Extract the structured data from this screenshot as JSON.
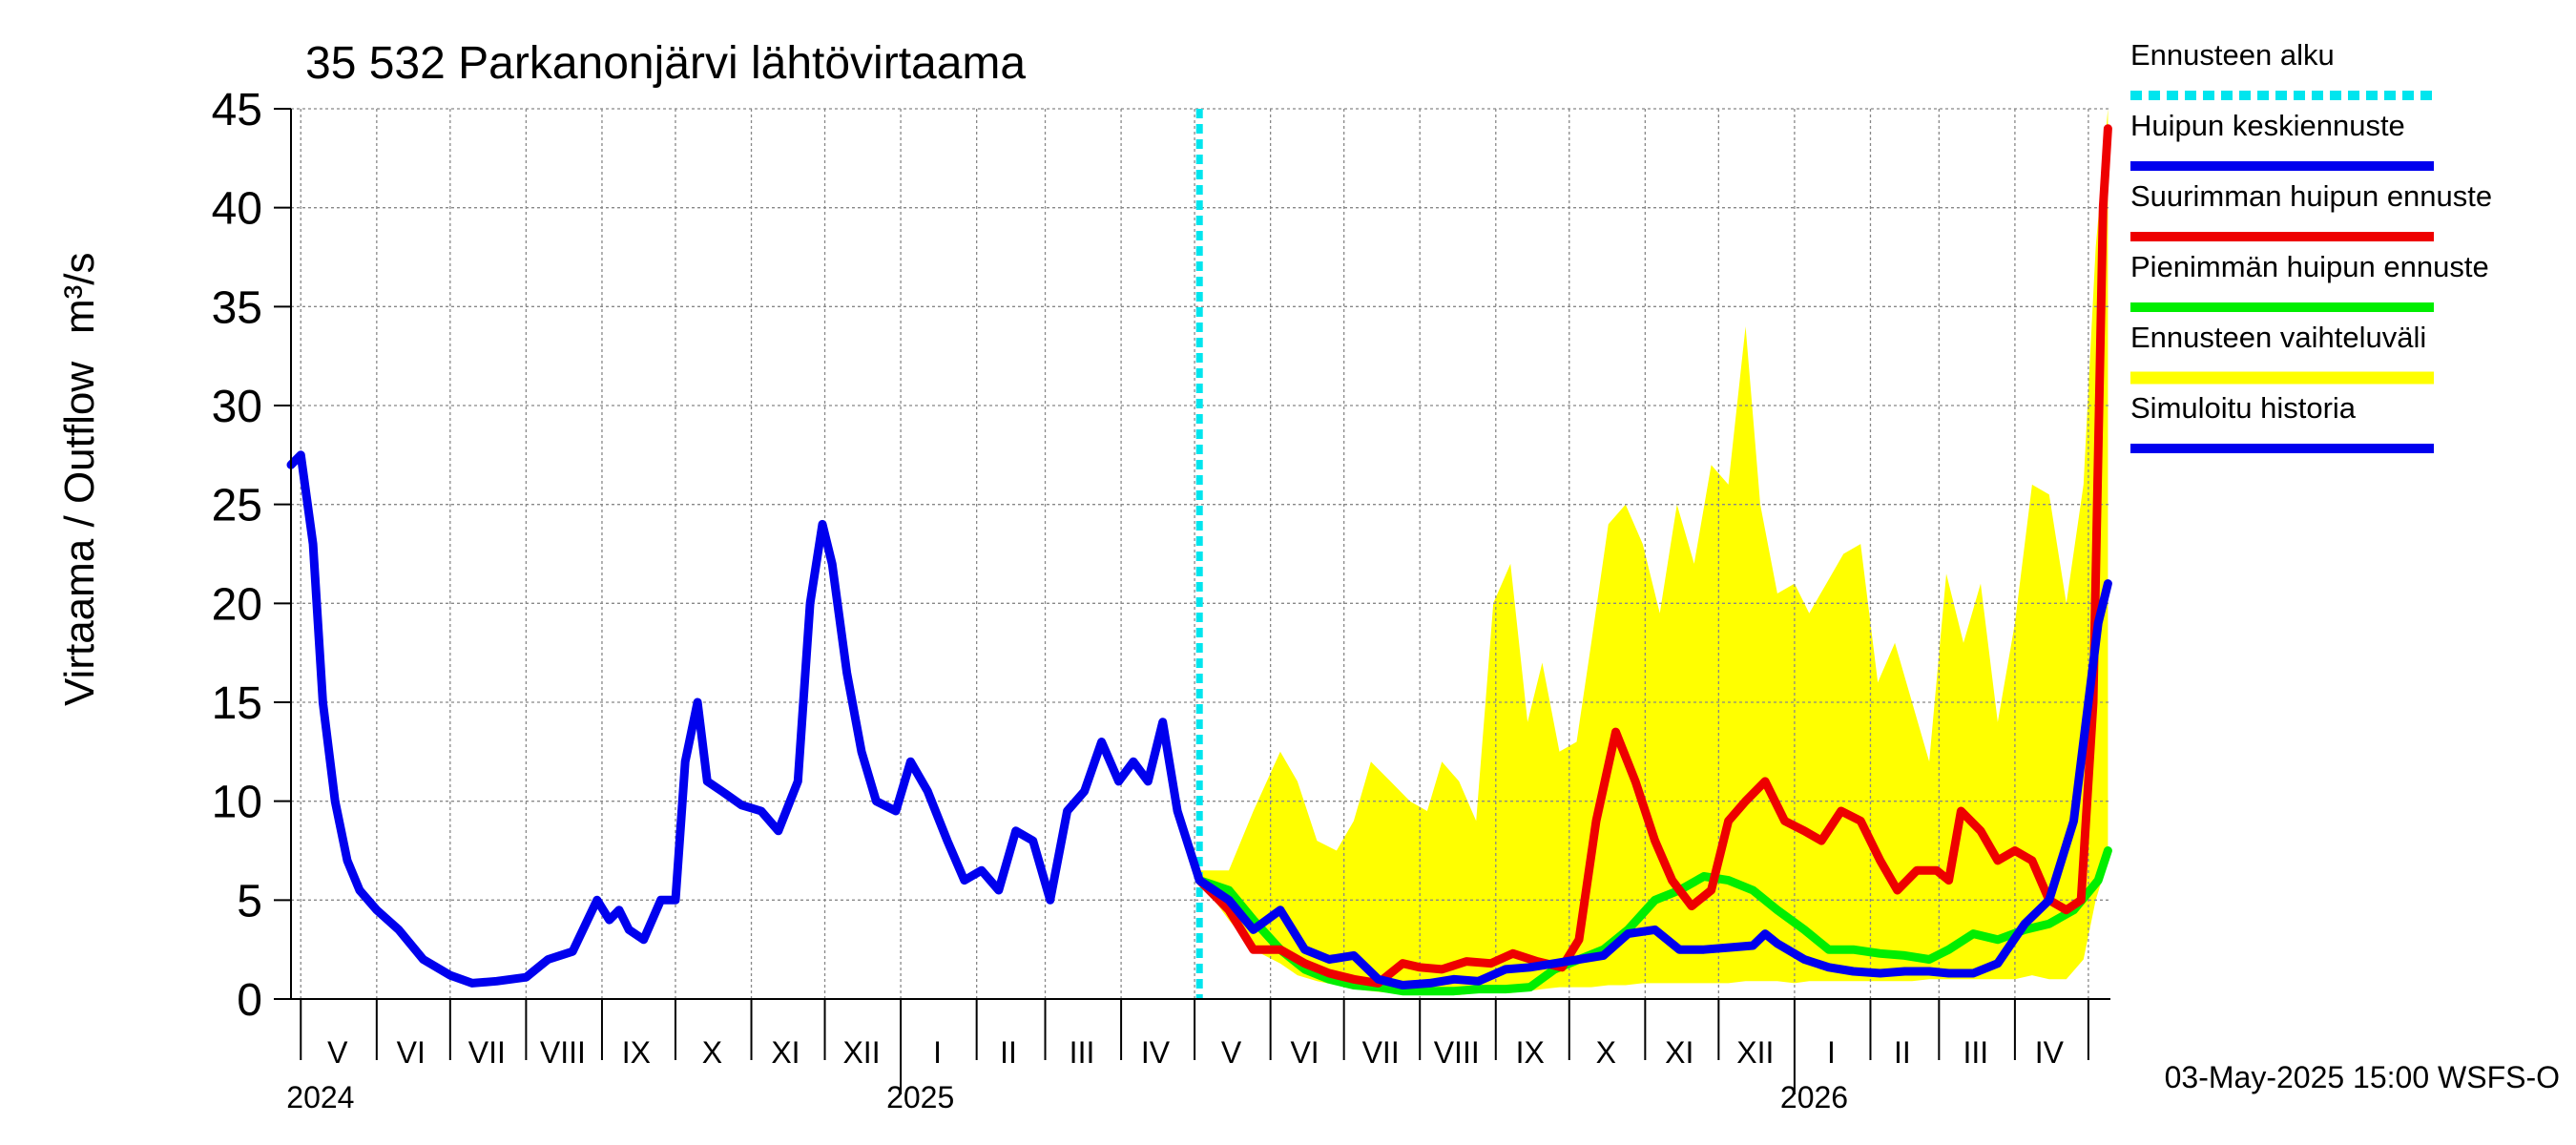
{
  "chart_data": {
    "type": "line",
    "title": "35 532 Parkanonjärvi lähtövirtaama",
    "ylabel": "Virtaama / Outflow",
    "yunit": "m³/s",
    "ylim": [
      0,
      45
    ],
    "yticks": [
      0,
      5,
      10,
      15,
      20,
      25,
      30,
      35,
      40,
      45
    ],
    "xlim": [
      "2024-04-27",
      "2026-05-10"
    ],
    "month_labels": [
      {
        "label": "V",
        "date": "2024-05-16"
      },
      {
        "label": "VI",
        "date": "2024-06-15"
      },
      {
        "label": "VII",
        "date": "2024-07-16"
      },
      {
        "label": "VIII",
        "date": "2024-08-16"
      },
      {
        "label": "IX",
        "date": "2024-09-15"
      },
      {
        "label": "X",
        "date": "2024-10-16"
      },
      {
        "label": "XI",
        "date": "2024-11-15"
      },
      {
        "label": "XII",
        "date": "2024-12-16"
      },
      {
        "label": "I",
        "date": "2025-01-16"
      },
      {
        "label": "II",
        "date": "2025-02-14"
      },
      {
        "label": "III",
        "date": "2025-03-16"
      },
      {
        "label": "IV",
        "date": "2025-04-15"
      },
      {
        "label": "V",
        "date": "2025-05-16"
      },
      {
        "label": "VI",
        "date": "2025-06-15"
      },
      {
        "label": "VII",
        "date": "2025-07-16"
      },
      {
        "label": "VIII",
        "date": "2025-08-16"
      },
      {
        "label": "IX",
        "date": "2025-09-15"
      },
      {
        "label": "X",
        "date": "2025-10-16"
      },
      {
        "label": "XI",
        "date": "2025-11-15"
      },
      {
        "label": "XII",
        "date": "2025-12-16"
      },
      {
        "label": "I",
        "date": "2026-01-16"
      },
      {
        "label": "II",
        "date": "2026-02-14"
      },
      {
        "label": "III",
        "date": "2026-03-16"
      },
      {
        "label": "IV",
        "date": "2026-04-15"
      }
    ],
    "year_labels": [
      {
        "label": "2024",
        "date": "2024-05-01"
      },
      {
        "label": "2025",
        "date": "2025-01-01"
      },
      {
        "label": "2026",
        "date": "2026-01-01"
      }
    ],
    "forecast_start": "2025-05-03",
    "footer": "03-May-2025 15:00 WSFS-O",
    "grid": true,
    "legend_position": "right",
    "legend": [
      {
        "label": "Ennusteen alku",
        "color": "#00e5ee",
        "style": "dashed"
      },
      {
        "label": "Huipun keskiennuste",
        "color": "#0000ee",
        "style": "solid"
      },
      {
        "label": "Suurimman huipun ennuste",
        "color": "#ee0000",
        "style": "solid"
      },
      {
        "label": "Pienimmän huipun ennuste",
        "color": "#00ee00",
        "style": "solid"
      },
      {
        "label": "Ennusteen vaihteluväli",
        "color": "#ffff00",
        "style": "band"
      },
      {
        "label": "Simuloitu historia",
        "color": "#0000ee",
        "style": "solid"
      }
    ],
    "series": [
      {
        "name": "Simuloitu historia",
        "color": "#0000ee",
        "x": [
          "2024-04-27",
          "2024-05-01",
          "2024-05-06",
          "2024-05-10",
          "2024-05-15",
          "2024-05-20",
          "2024-05-25",
          "2024-06-01",
          "2024-06-10",
          "2024-06-20",
          "2024-07-01",
          "2024-07-10",
          "2024-07-20",
          "2024-08-01",
          "2024-08-10",
          "2024-08-20",
          "2024-08-30",
          "2024-09-04",
          "2024-09-08",
          "2024-09-12",
          "2024-09-18",
          "2024-09-25",
          "2024-10-01",
          "2024-10-05",
          "2024-10-10",
          "2024-10-14",
          "2024-10-20",
          "2024-10-28",
          "2024-11-05",
          "2024-11-12",
          "2024-11-20",
          "2024-11-25",
          "2024-11-30",
          "2024-12-04",
          "2024-12-10",
          "2024-12-16",
          "2024-12-22",
          "2024-12-30",
          "2025-01-05",
          "2025-01-12",
          "2025-01-20",
          "2025-01-27",
          "2025-02-03",
          "2025-02-10",
          "2025-02-17",
          "2025-02-24",
          "2025-03-03",
          "2025-03-10",
          "2025-03-17",
          "2025-03-24",
          "2025-03-31",
          "2025-04-06",
          "2025-04-12",
          "2025-04-18",
          "2025-04-24",
          "2025-05-03"
        ],
        "values": [
          27,
          27.5,
          23,
          15,
          10,
          7,
          5.5,
          4.5,
          3.5,
          2,
          1.2,
          0.8,
          0.9,
          1.1,
          2,
          2.4,
          5,
          4,
          4.5,
          3.5,
          3,
          5,
          5,
          12,
          15,
          11,
          10.5,
          9.8,
          9.5,
          8.5,
          11,
          20,
          24,
          22,
          16.5,
          12.5,
          10,
          9.5,
          12,
          10.5,
          8,
          6,
          6.5,
          5.5,
          8.5,
          8,
          5,
          9.5,
          10.5,
          13,
          11,
          12,
          11,
          14,
          9.5,
          6
        ]
      },
      {
        "name": "Huipun keskiennuste",
        "color": "#0000ee",
        "x": [
          "2025-05-03",
          "2025-05-15",
          "2025-05-25",
          "2025-06-05",
          "2025-06-15",
          "2025-06-25",
          "2025-07-05",
          "2025-07-15",
          "2025-07-25",
          "2025-08-05",
          "2025-08-15",
          "2025-08-25",
          "2025-09-05",
          "2025-09-15",
          "2025-09-25",
          "2025-10-05",
          "2025-10-15",
          "2025-10-25",
          "2025-11-05",
          "2025-11-15",
          "2025-11-25",
          "2025-12-05",
          "2025-12-15",
          "2025-12-20",
          "2025-12-25",
          "2026-01-05",
          "2026-01-15",
          "2026-01-25",
          "2026-02-05",
          "2026-02-15",
          "2026-02-25",
          "2026-03-05",
          "2026-03-15",
          "2026-03-25",
          "2026-04-05",
          "2026-04-15",
          "2026-04-25",
          "2026-05-01",
          "2026-05-05",
          "2026-05-09"
        ],
        "values": [
          6,
          5,
          3.5,
          4.5,
          2.5,
          2,
          2.2,
          1,
          0.7,
          0.8,
          1,
          0.9,
          1.5,
          1.6,
          1.8,
          2,
          2.2,
          3.3,
          3.5,
          2.5,
          2.5,
          2.6,
          2.7,
          3.3,
          2.8,
          2,
          1.6,
          1.4,
          1.3,
          1.4,
          1.4,
          1.3,
          1.3,
          1.8,
          3.8,
          5,
          9,
          15,
          19,
          21
        ]
      },
      {
        "name": "Suurimman huipun ennuste",
        "color": "#ee0000",
        "x": [
          "2025-05-03",
          "2025-05-15",
          "2025-05-25",
          "2025-06-05",
          "2025-06-15",
          "2025-06-25",
          "2025-07-05",
          "2025-07-15",
          "2025-07-25",
          "2025-08-01",
          "2025-08-10",
          "2025-08-20",
          "2025-08-30",
          "2025-09-08",
          "2025-09-18",
          "2025-09-28",
          "2025-10-05",
          "2025-10-12",
          "2025-10-20",
          "2025-10-28",
          "2025-11-05",
          "2025-11-12",
          "2025-11-20",
          "2025-11-28",
          "2025-12-05",
          "2025-12-12",
          "2025-12-20",
          "2025-12-28",
          "2026-01-05",
          "2026-01-12",
          "2026-01-20",
          "2026-01-28",
          "2026-02-05",
          "2026-02-12",
          "2026-02-20",
          "2026-02-28",
          "2026-03-05",
          "2026-03-10",
          "2026-03-18",
          "2026-03-25",
          "2026-04-01",
          "2026-04-08",
          "2026-04-15",
          "2026-04-22",
          "2026-04-28",
          "2026-05-03",
          "2026-05-07",
          "2026-05-09"
        ],
        "values": [
          6,
          4.5,
          2.5,
          2.5,
          1.8,
          1.3,
          1,
          0.8,
          1.8,
          1.6,
          1.5,
          1.9,
          1.8,
          2.3,
          1.9,
          1.6,
          3,
          9,
          13.5,
          11,
          8,
          6,
          4.7,
          5.5,
          9,
          10,
          11,
          9,
          8.5,
          8,
          9.5,
          9,
          7,
          5.5,
          6.5,
          6.5,
          6,
          9.5,
          8.5,
          7,
          7.5,
          7,
          5,
          4.5,
          5,
          15,
          40,
          44
        ]
      },
      {
        "name": "Pienimmän huipun ennuste",
        "color": "#00ee00",
        "x": [
          "2025-05-03",
          "2025-05-15",
          "2025-05-25",
          "2025-06-05",
          "2025-06-15",
          "2025-06-25",
          "2025-07-05",
          "2025-07-15",
          "2025-07-25",
          "2025-08-05",
          "2025-08-15",
          "2025-08-25",
          "2025-09-05",
          "2025-09-15",
          "2025-09-25",
          "2025-10-05",
          "2025-10-15",
          "2025-10-25",
          "2025-11-05",
          "2025-11-15",
          "2025-11-25",
          "2025-12-05",
          "2025-12-15",
          "2025-12-25",
          "2026-01-05",
          "2026-01-15",
          "2026-01-25",
          "2026-02-05",
          "2026-02-15",
          "2026-02-25",
          "2026-03-05",
          "2026-03-15",
          "2026-03-25",
          "2026-04-05",
          "2026-04-15",
          "2026-04-25",
          "2026-05-05",
          "2026-05-09"
        ],
        "values": [
          6,
          5.5,
          4,
          2.5,
          1.5,
          1,
          0.7,
          0.6,
          0.4,
          0.4,
          0.4,
          0.5,
          0.5,
          0.6,
          1.5,
          2,
          2.5,
          3.5,
          5,
          5.5,
          6.2,
          6,
          5.5,
          4.5,
          3.5,
          2.5,
          2.5,
          2.3,
          2.2,
          2,
          2.5,
          3.3,
          3,
          3.5,
          3.8,
          4.5,
          6,
          7.5
        ]
      }
    ],
    "band": {
      "name": "Ennusteen vaihteluväli",
      "color": "#ffff00",
      "x": [
        "2025-05-03",
        "2025-05-15",
        "2025-05-25",
        "2025-06-05",
        "2025-06-12",
        "2025-06-20",
        "2025-06-28",
        "2025-07-05",
        "2025-07-12",
        "2025-07-20",
        "2025-07-28",
        "2025-08-04",
        "2025-08-10",
        "2025-08-17",
        "2025-08-24",
        "2025-08-31",
        "2025-09-07",
        "2025-09-14",
        "2025-09-20",
        "2025-09-27",
        "2025-10-04",
        "2025-10-10",
        "2025-10-17",
        "2025-10-24",
        "2025-10-31",
        "2025-11-07",
        "2025-11-14",
        "2025-11-21",
        "2025-11-28",
        "2025-12-05",
        "2025-12-12",
        "2025-12-18",
        "2025-12-25",
        "2026-01-01",
        "2026-01-07",
        "2026-01-14",
        "2026-01-21",
        "2026-01-28",
        "2026-02-04",
        "2026-02-11",
        "2026-02-18",
        "2026-02-25",
        "2026-03-04",
        "2026-03-11",
        "2026-03-18",
        "2026-03-25",
        "2026-04-01",
        "2026-04-08",
        "2026-04-15",
        "2026-04-22",
        "2026-04-29",
        "2026-05-04",
        "2026-05-09"
      ],
      "upper": [
        6.5,
        6.5,
        9.5,
        12.5,
        11,
        8,
        7.5,
        9,
        12,
        11,
        10,
        9.5,
        12,
        11,
        9,
        20,
        22,
        14,
        17,
        12.5,
        13,
        18,
        24,
        25,
        23,
        19.5,
        25,
        22,
        27,
        26,
        34,
        25,
        20.5,
        21,
        19.5,
        21,
        22.5,
        23,
        16,
        18,
        15,
        12,
        21.5,
        18,
        21,
        14,
        19,
        26,
        25.5,
        20,
        26,
        38,
        45
      ],
      "lower": [
        6,
        4,
        2.5,
        1.8,
        1.2,
        0.9,
        0.7,
        0.5,
        0.4,
        0.3,
        0.2,
        0.2,
        0.3,
        0.2,
        0.3,
        0.3,
        0.3,
        0.4,
        0.5,
        0.6,
        0.6,
        0.6,
        0.7,
        0.7,
        0.8,
        0.8,
        0.8,
        0.8,
        0.8,
        0.8,
        0.9,
        0.9,
        0.9,
        0.8,
        0.9,
        0.9,
        0.9,
        0.9,
        0.9,
        0.9,
        0.9,
        1,
        1,
        1,
        1,
        1,
        1,
        1.2,
        1,
        1,
        2,
        5,
        7
      ]
    }
  }
}
